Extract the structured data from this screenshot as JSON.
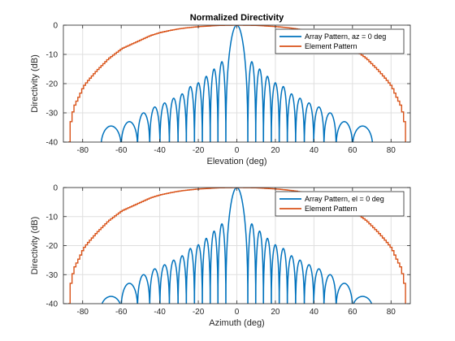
{
  "chart_data": [
    {
      "type": "line",
      "title": "Normalized Directivity",
      "xlabel": "Elevation (deg)",
      "ylabel": "Directivity (dB)",
      "xlim": [
        -90,
        90
      ],
      "ylim": [
        -40,
        0
      ],
      "xticks": [
        -80,
        -60,
        -40,
        -20,
        0,
        20,
        40,
        60,
        80
      ],
      "yticks": [
        0,
        -10,
        -20,
        -30,
        -40
      ],
      "grid": true,
      "legend_position": "top-right",
      "series": [
        {
          "name": "Array Pattern, az = 0 deg",
          "color": "#0072bd",
          "sidelobe_peaks": [
            [
              -65.3,
              -34.5
            ],
            [
              -55.4,
              -33
            ],
            [
              -48.3,
              -30
            ],
            [
              -42.6,
              -28
            ],
            [
              -37.5,
              -26.6
            ],
            [
              -32.7,
              -25
            ],
            [
              -28.3,
              -23.5
            ],
            [
              -24.1,
              -21
            ],
            [
              -19.9,
              -19.7
            ],
            [
              -15.8,
              -17.5
            ],
            [
              -11.7,
              -15
            ],
            [
              -7.7,
              -12.5
            ],
            [
              0,
              0
            ],
            [
              7.7,
              -12.5
            ],
            [
              11.7,
              -15
            ],
            [
              15.8,
              -17.5
            ],
            [
              19.9,
              -19.7
            ],
            [
              24.1,
              -21
            ],
            [
              28.3,
              -23.5
            ],
            [
              32.7,
              -25
            ],
            [
              37.5,
              -26.6
            ],
            [
              42.6,
              -28
            ],
            [
              48.3,
              -30
            ],
            [
              55.4,
              -33
            ],
            [
              65.3,
              -34.5
            ]
          ],
          "nulls": [
            -86.0,
            -70.5,
            -60.0,
            -51.5,
            -45.2,
            -39.9,
            -35.0,
            -30.5,
            -26.2,
            -22.0,
            -17.9,
            -13.8,
            -9.8,
            -5.7,
            5.7,
            9.8,
            13.8,
            17.9,
            22.0,
            26.2,
            30.5,
            35.0,
            39.9,
            45.2,
            51.5,
            60.0,
            70.5,
            86.0
          ]
        },
        {
          "name": "Element Pattern",
          "color": "#d95319",
          "points": [
            [
              -87.5,
              -40
            ],
            [
              -86.5,
              -33
            ],
            [
              -85,
              -28
            ],
            [
              -82,
              -24
            ],
            [
              -80,
              -21
            ],
            [
              -77,
              -18.5
            ],
            [
              -73,
              -15.5
            ],
            [
              -70,
              -13.5
            ],
            [
              -67,
              -11.5
            ],
            [
              -63,
              -9.5
            ],
            [
              -60,
              -8
            ],
            [
              -55,
              -6.5
            ],
            [
              -50,
              -5
            ],
            [
              -45,
              -3.5
            ],
            [
              -40,
              -2.5
            ],
            [
              -35,
              -1.8
            ],
            [
              -30,
              -1.2
            ],
            [
              -25,
              -0.8
            ],
            [
              -20,
              -0.5
            ],
            [
              -15,
              -0.3
            ],
            [
              -10,
              -0.1
            ],
            [
              0,
              0
            ],
            [
              10,
              -0.1
            ],
            [
              15,
              -0.3
            ],
            [
              20,
              -0.5
            ],
            [
              25,
              -0.8
            ],
            [
              30,
              -1.2
            ],
            [
              35,
              -1.8
            ],
            [
              40,
              -2.5
            ],
            [
              45,
              -3.5
            ],
            [
              50,
              -5
            ],
            [
              55,
              -6.5
            ],
            [
              60,
              -8
            ],
            [
              63,
              -9.5
            ],
            [
              67,
              -11.5
            ],
            [
              70,
              -13.5
            ],
            [
              73,
              -15.5
            ],
            [
              77,
              -18.5
            ],
            [
              80,
              -21
            ],
            [
              82,
              -24
            ],
            [
              85,
              -28
            ],
            [
              86.5,
              -33
            ],
            [
              87.5,
              -40
            ]
          ]
        }
      ]
    },
    {
      "type": "line",
      "title": "",
      "xlabel": "Azimuth (deg)",
      "ylabel": "Directivity (dB)",
      "xlim": [
        -90,
        90
      ],
      "ylim": [
        -40,
        0
      ],
      "xticks": [
        -80,
        -60,
        -40,
        -20,
        0,
        20,
        40,
        60,
        80
      ],
      "yticks": [
        0,
        -10,
        -20,
        -30,
        -40
      ],
      "grid": true,
      "legend_position": "top-right",
      "series": [
        {
          "name": "Array Pattern, el = 0 deg",
          "color": "#0072bd",
          "sidelobe_peaks": [
            [
              -65.3,
              -37.5
            ],
            [
              -55.4,
              -33
            ],
            [
              -48.3,
              -30
            ],
            [
              -42.6,
              -28
            ],
            [
              -37.5,
              -26.6
            ],
            [
              -32.7,
              -25
            ],
            [
              -28.3,
              -23.5
            ],
            [
              -24.1,
              -21
            ],
            [
              -19.9,
              -19.7
            ],
            [
              -15.8,
              -17.5
            ],
            [
              -11.7,
              -15
            ],
            [
              -7.7,
              -12.5
            ],
            [
              0,
              0
            ],
            [
              7.7,
              -12.5
            ],
            [
              11.7,
              -15
            ],
            [
              15.8,
              -17.5
            ],
            [
              19.9,
              -19.7
            ],
            [
              24.1,
              -21
            ],
            [
              28.3,
              -23.5
            ],
            [
              32.7,
              -25
            ],
            [
              37.5,
              -26.6
            ],
            [
              42.6,
              -28
            ],
            [
              48.3,
              -30
            ],
            [
              55.4,
              -33
            ],
            [
              65.3,
              -37.5
            ]
          ],
          "nulls": [
            -86.0,
            -70.5,
            -60.0,
            -51.5,
            -45.2,
            -39.9,
            -35.0,
            -30.5,
            -26.2,
            -22.0,
            -17.9,
            -13.8,
            -9.8,
            -5.7,
            5.7,
            9.8,
            13.8,
            17.9,
            22.0,
            26.2,
            30.5,
            35.0,
            39.9,
            45.2,
            51.5,
            60.0,
            70.5,
            86.0
          ]
        },
        {
          "name": "Element Pattern",
          "color": "#d95319",
          "points": [
            [
              -87.5,
              -40
            ],
            [
              -86.5,
              -33
            ],
            [
              -85,
              -28
            ],
            [
              -82,
              -24
            ],
            [
              -80,
              -21
            ],
            [
              -77,
              -18.5
            ],
            [
              -73,
              -15.5
            ],
            [
              -70,
              -13.5
            ],
            [
              -67,
              -11.5
            ],
            [
              -63,
              -9.5
            ],
            [
              -60,
              -8
            ],
            [
              -55,
              -6.5
            ],
            [
              -50,
              -5
            ],
            [
              -45,
              -3.5
            ],
            [
              -40,
              -2.5
            ],
            [
              -35,
              -1.8
            ],
            [
              -30,
              -1.2
            ],
            [
              -25,
              -0.8
            ],
            [
              -20,
              -0.5
            ],
            [
              -15,
              -0.3
            ],
            [
              -10,
              -0.1
            ],
            [
              0,
              0
            ],
            [
              10,
              -0.1
            ],
            [
              15,
              -0.3
            ],
            [
              20,
              -0.5
            ],
            [
              25,
              -0.8
            ],
            [
              30,
              -1.2
            ],
            [
              35,
              -1.8
            ],
            [
              40,
              -2.5
            ],
            [
              45,
              -3.5
            ],
            [
              50,
              -5
            ],
            [
              55,
              -6.5
            ],
            [
              60,
              -8
            ],
            [
              63,
              -9.5
            ],
            [
              67,
              -11.5
            ],
            [
              70,
              -13.5
            ],
            [
              73,
              -15.5
            ],
            [
              77,
              -18.5
            ],
            [
              80,
              -21
            ],
            [
              82,
              -24
            ],
            [
              85,
              -28
            ],
            [
              86.5,
              -33
            ],
            [
              87.5,
              -40
            ]
          ]
        }
      ]
    }
  ]
}
